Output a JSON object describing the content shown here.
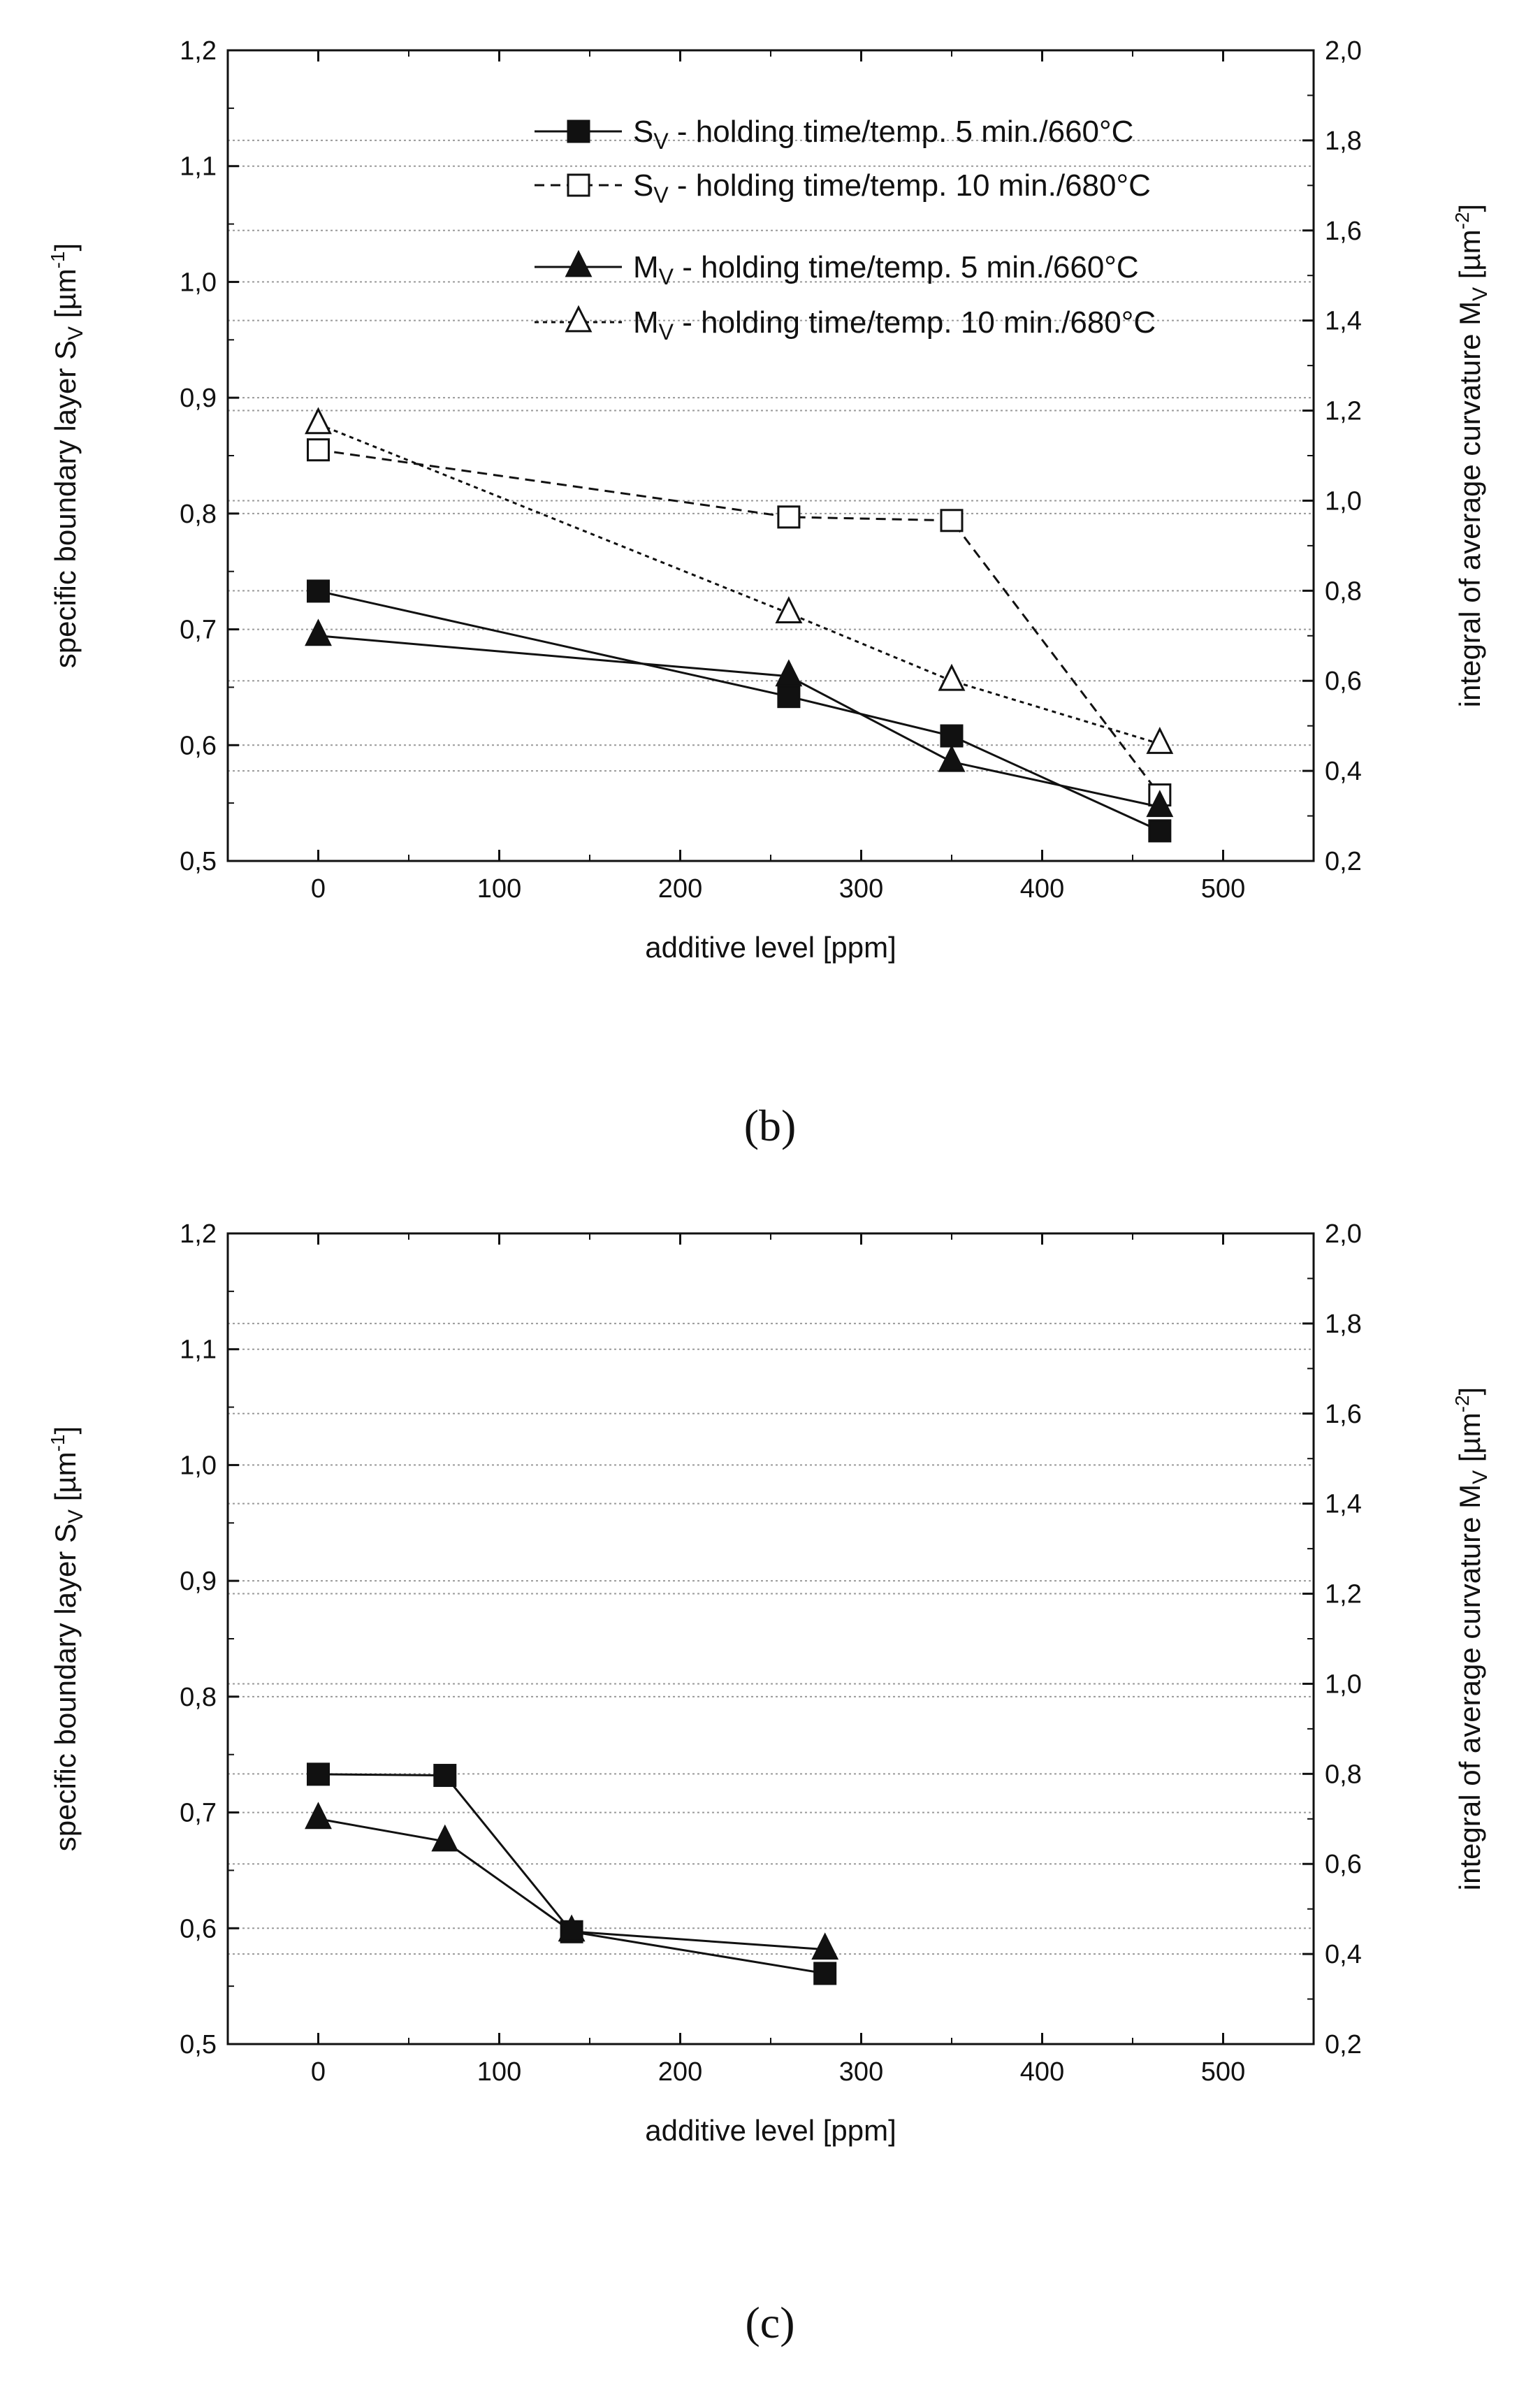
{
  "chart_data": [
    {
      "type": "line",
      "panel_label": "b",
      "xlabel": "additive level [ppm]",
      "ylabel": "specific boundary layer S_V [µm^-1]",
      "y2label": "integral of average curvature M_V [µm^-2]",
      "xlim": [
        -50,
        550
      ],
      "ylim": [
        0.5,
        1.2
      ],
      "y2lim": [
        0.2,
        2.0
      ],
      "x_ticks": [
        0,
        100,
        200,
        300,
        400,
        500
      ],
      "y_ticks": [
        "0,5",
        "0,6",
        "0,7",
        "0,8",
        "0,9",
        "1,0",
        "1,1",
        "1,2"
      ],
      "y2_ticks": [
        "0,2",
        "0,4",
        "0,6",
        "0,8",
        "1,0",
        "1,2",
        "1,4",
        "1,6",
        "1,8",
        "2,0"
      ],
      "legend_position": "top-right",
      "series": [
        {
          "name": "S_V - holding time/temp. 5 min./660°C",
          "axis": "left",
          "marker": "square-filled",
          "line": "solid",
          "x": [
            0,
            260,
            350,
            465
          ],
          "y": [
            0.733,
            0.642,
            0.608,
            0.526
          ]
        },
        {
          "name": "S_V - holding time/temp. 10 min./680°C",
          "axis": "left",
          "marker": "square-open",
          "line": "dashed",
          "x": [
            0,
            260,
            350,
            465
          ],
          "y": [
            0.855,
            0.797,
            0.794,
            0.557
          ]
        },
        {
          "name": "M_V - holding time/temp. 5 min./660°C",
          "axis": "right",
          "marker": "triangle-filled",
          "line": "solid",
          "x": [
            0,
            260,
            350,
            465
          ],
          "y": [
            0.7,
            0.61,
            0.42,
            0.32
          ]
        },
        {
          "name": "M_V - holding time/temp. 10 min./680°C",
          "axis": "right",
          "marker": "triangle-open",
          "line": "dotted",
          "x": [
            0,
            260,
            350,
            465
          ],
          "y": [
            1.17,
            0.75,
            0.6,
            0.46
          ]
        }
      ]
    },
    {
      "type": "line",
      "panel_label": "c",
      "xlabel": "additive level [ppm]",
      "ylabel": "specific boundary layer S_V [µm^-1]",
      "y2label": "integral of average curvature M_V [µm^-2]",
      "xlim": [
        -50,
        550
      ],
      "ylim": [
        0.5,
        1.2
      ],
      "y2lim": [
        0.2,
        2.0
      ],
      "x_ticks": [
        0,
        100,
        200,
        300,
        400,
        500
      ],
      "y_ticks": [
        "0,5",
        "0,6",
        "0,7",
        "0,8",
        "0,9",
        "1,0",
        "1,1",
        "1,2"
      ],
      "y2_ticks": [
        "0,2",
        "0,4",
        "0,6",
        "0,8",
        "1,0",
        "1,2",
        "1,4",
        "1,6",
        "1,8",
        "2,0"
      ],
      "series": [
        {
          "name": "S_V",
          "axis": "left",
          "marker": "square-filled",
          "line": "solid",
          "x": [
            0,
            70,
            140,
            280
          ],
          "y": [
            0.733,
            0.732,
            0.597,
            0.561
          ]
        },
        {
          "name": "M_V",
          "axis": "right",
          "marker": "triangle-filled",
          "line": "solid",
          "x": [
            0,
            70,
            140,
            280
          ],
          "y": [
            0.7,
            0.65,
            0.45,
            0.41
          ]
        }
      ]
    }
  ],
  "labels": {
    "ylabel_main": "specific boundary layer S",
    "ylabel_sub": "V",
    "ylabel_unit": " [µm",
    "ylabel_exp": "-1",
    "ylabel_close": "]",
    "y2label_main": "integral of average curvature M",
    "y2label_sub": "V",
    "y2label_unit": " [µm",
    "y2label_exp": "-2",
    "y2label_close": "]",
    "xlabel": "additive level [ppm]",
    "caption_b": "(b)",
    "caption_c": "(c)"
  },
  "legend": [
    {
      "sym": "S",
      "sub": "V",
      "text": " - holding time/temp. 5 min./660°C"
    },
    {
      "sym": "S",
      "sub": "V",
      "text": " - holding time/temp. 10 min./680°C"
    },
    {
      "sym": "M",
      "sub": "V",
      "text": " - holding time/temp. 5 min./660°C"
    },
    {
      "sym": "M",
      "sub": "V",
      "text": " - holding time/temp. 10 min./680°C"
    }
  ]
}
